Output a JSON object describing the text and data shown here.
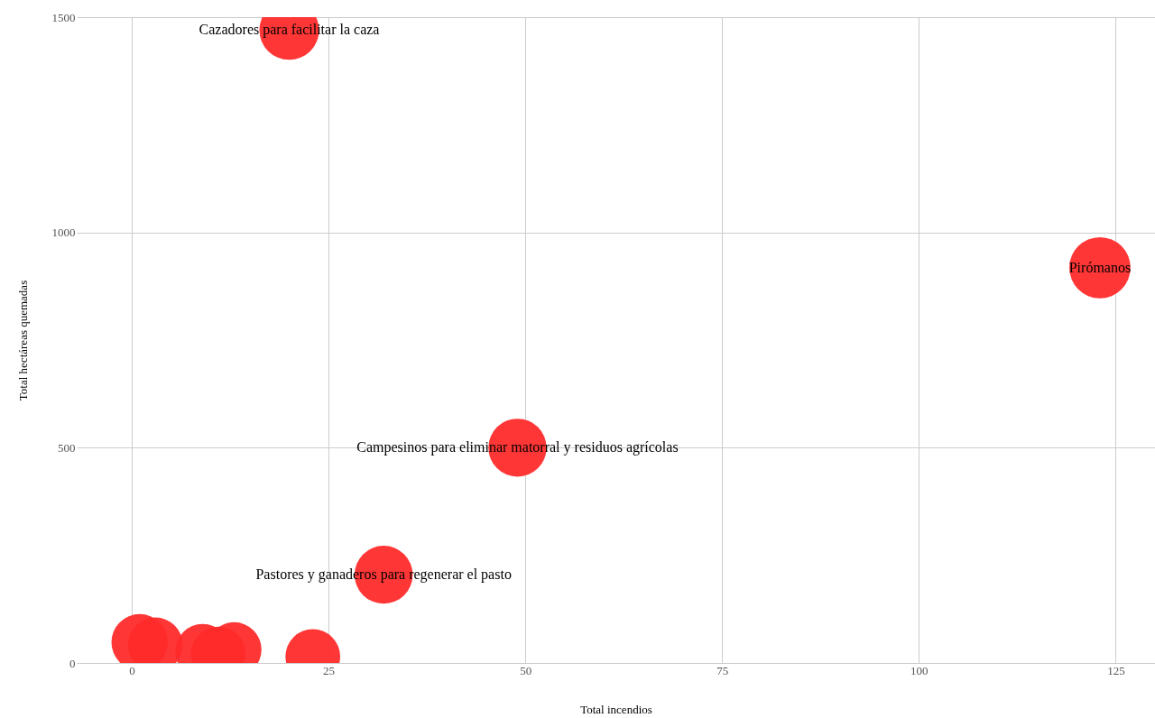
{
  "chart_data": {
    "type": "bubble",
    "xlabel": "Total incendios",
    "ylabel": "Total hectáreas quemadas",
    "x": [
      20,
      123,
      49,
      32,
      1,
      3,
      9,
      11,
      13,
      23
    ],
    "values": [
      1470,
      918,
      500,
      205,
      48,
      42,
      27,
      21,
      31,
      15
    ],
    "sizes": [
      0.95,
      1,
      0.9,
      0.9,
      0.85,
      0.8,
      0.8,
      0.8,
      0.8,
      0.8
    ],
    "color": "#ff2b2b",
    "annotations": [
      {
        "text": "Cazadores para facilitar la caza",
        "x": 20,
        "y": 1470
      },
      {
        "text": "Pirómanos",
        "x": 123,
        "y": 918
      },
      {
        "text": "Campesinos para eliminar matorral y residuos agrícolas",
        "x": 49,
        "y": 500
      },
      {
        "text": "Pastores y ganaderos para regenerar el pasto",
        "x": 32,
        "y": 205
      }
    ],
    "xlim": [
      -7,
      130
    ],
    "ylim": [
      0,
      1500
    ],
    "xticks": [
      0,
      25,
      50,
      75,
      100,
      125
    ],
    "yticks": [
      0,
      500,
      1000,
      1500
    ],
    "grid": true
  }
}
